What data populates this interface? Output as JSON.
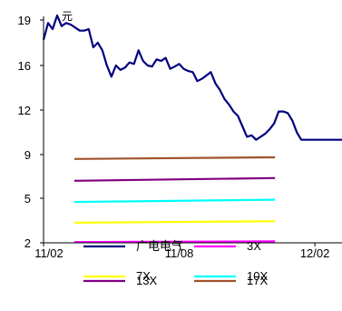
{
  "chart_data": {
    "type": "line",
    "unit_label": "元",
    "y_ticks": [
      2,
      5,
      9,
      12,
      16,
      19
    ],
    "ylim": [
      2,
      20
    ],
    "x_ticks": [
      {
        "label": "11/02",
        "t": 0
      },
      {
        "label": "11/08",
        "t": 150
      },
      {
        "label": "12/02",
        "t": 300
      }
    ],
    "xlim": [
      0,
      330
    ],
    "grid": false,
    "legend_position": "bottom",
    "series": [
      {
        "name": "广电电气",
        "color": "#000080",
        "x": [
          0,
          5,
          10,
          15,
          20,
          25,
          30,
          35,
          40,
          45,
          50,
          55,
          60,
          65,
          70,
          75,
          80,
          85,
          90,
          95,
          100,
          105,
          110,
          115,
          120,
          125,
          130,
          135,
          140,
          145,
          150,
          155,
          160,
          165,
          170,
          175,
          180,
          185,
          190,
          195,
          200,
          205,
          210,
          215,
          220,
          225,
          230,
          235,
          240,
          245,
          250,
          255,
          260,
          265,
          270,
          275,
          280,
          285,
          290,
          295,
          300,
          305,
          310,
          315,
          320,
          325,
          330
        ],
        "values": [
          17.7,
          18.8,
          18.4,
          19.3,
          18.6,
          18.8,
          18.7,
          18.5,
          18.3,
          18.3,
          18.4,
          17.2,
          17.5,
          17.0,
          16.0,
          15.0,
          16.0,
          15.6,
          15.8,
          16.2,
          16.1,
          17.0,
          16.3,
          16.0,
          15.9,
          16.4,
          16.3,
          16.5,
          15.7,
          15.9,
          16.1,
          15.7,
          15.5,
          15.4,
          14.6,
          14.8,
          15.1,
          15.4,
          14.4,
          13.8,
          13.0,
          12.5,
          11.9,
          11.6,
          10.9,
          10.2,
          10.3,
          10.0,
          10.2,
          10.4,
          10.7,
          11.1,
          11.9,
          11.9,
          11.8,
          11.3,
          10.5,
          10.0,
          10.0,
          10.0,
          10.0,
          10.0,
          10.0,
          10.0,
          10.0,
          10.0,
          10.0
        ]
      },
      {
        "name": "3X",
        "color": "#ff00ff",
        "x": [
          34,
          256
        ],
        "values": [
          2.05,
          2.1
        ]
      },
      {
        "name": "7X",
        "color": "#ffff00",
        "x": [
          34,
          256
        ],
        "values": [
          3.35,
          3.45
        ]
      },
      {
        "name": "10X",
        "color": "#00ffff",
        "x": [
          34,
          256
        ],
        "values": [
          4.75,
          4.9
        ]
      },
      {
        "name": "13X",
        "color": "#800080",
        "x": [
          34,
          256
        ],
        "values": [
          6.6,
          6.85
        ]
      },
      {
        "name": "17X",
        "color": "#a0522d",
        "x": [
          34,
          256
        ],
        "values": [
          8.6,
          8.75
        ]
      }
    ]
  }
}
